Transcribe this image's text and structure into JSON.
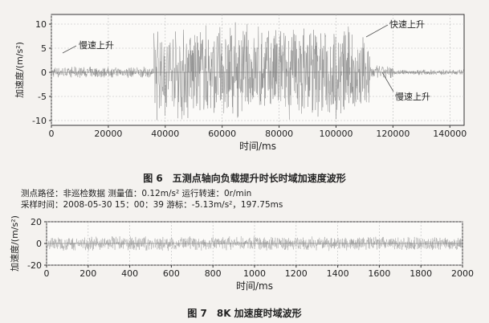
{
  "chart_data": [
    {
      "type": "line",
      "xlabel": "时间/ms",
      "ylabel": "加速度/(m/s²)",
      "xlim": [
        0,
        145000
      ],
      "ylim": [
        -11,
        12
      ],
      "xticks": [
        0,
        20000,
        40000,
        60000,
        80000,
        100000,
        120000,
        140000
      ],
      "yticks": [
        -10,
        -5,
        0,
        5,
        10
      ],
      "grid": true,
      "series": [
        {
          "segments": [
            {
              "x": [
                0,
                36000
              ],
              "amplitude": 1.2
            },
            {
              "x": [
                36000,
                112000
              ],
              "amplitude": 10.5
            },
            {
              "x": [
                112000,
                120000
              ],
              "amplitude": 1.5
            },
            {
              "x": [
                120000,
                145000
              ],
              "amplitude": 0.6
            }
          ]
        }
      ],
      "annotations": [
        "慢速上升",
        "快速上升",
        "慢速上升"
      ]
    },
    {
      "type": "line",
      "xlabel": "时间/ms",
      "ylabel": "加速度/(m/s²)",
      "xlim": [
        0,
        2000
      ],
      "ylim": [
        -20,
        20
      ],
      "xticks": [
        0,
        200,
        400,
        600,
        800,
        1000,
        1200,
        1400,
        1600,
        1800,
        2000
      ],
      "yticks": [
        -20,
        0,
        20
      ],
      "grid": true,
      "series": [
        {
          "amplitude": 7
        }
      ]
    }
  ],
  "captions": {
    "fig6": "图 6　五测点轴向负载提升时长时域加速度波形",
    "fig7": "图 7　8K 加速度时域波形"
  },
  "info": {
    "line1": "测点路径：非巡检数据  测量值：0.12m/s²   运行转速：0r/min",
    "line2": "采样时间：2008-05-30 15：00：39  游标：-5.13m/s²，197.75ms"
  }
}
